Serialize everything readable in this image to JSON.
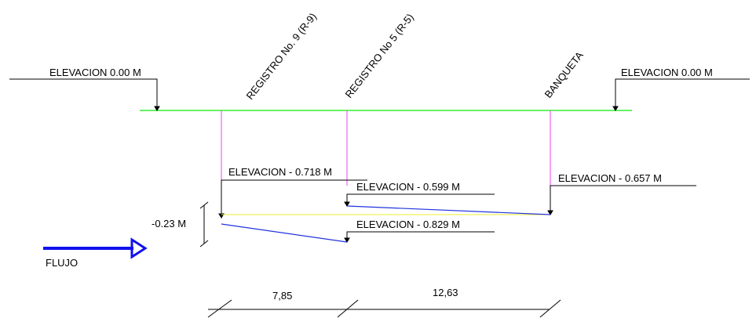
{
  "labels": {
    "elev_left": "ELEVACION 0.00 M",
    "elev_right": "ELEVACION 0.00 M",
    "registro9": "REGISTRO No. 9 (R-9)",
    "registro5": "REGISTRO No 5 (R-5)",
    "banqueta": "BANQUETA",
    "elev_0718": "ELEVACION - 0.718 M",
    "elev_0599": "ELEVACION - 0.599 M",
    "elev_0829": "ELEVACION - 0.829 M",
    "elev_0657": "ELEVACION - 0.657 M",
    "offset": "-0.23 M",
    "flujo": "FLUJO",
    "dist_1": "7,85",
    "dist_2": "12,63"
  },
  "colors": {
    "ground": "#33ee33",
    "risers": "#ee44ee",
    "pipe": "#2233dd",
    "reference": "#eeee33",
    "arrow": "#1111ee",
    "ink": "#000000"
  }
}
